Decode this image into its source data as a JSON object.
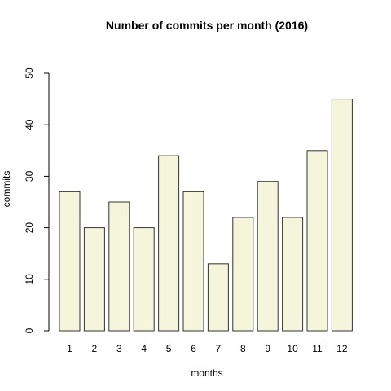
{
  "chart_data": {
    "type": "bar",
    "title": "Number of commits per month (2016)",
    "xlabel": "months",
    "ylabel": "commits",
    "categories": [
      "1",
      "2",
      "3",
      "4",
      "5",
      "6",
      "7",
      "8",
      "9",
      "10",
      "11",
      "12"
    ],
    "values": [
      27,
      20,
      25,
      20,
      34,
      27,
      13,
      22,
      29,
      22,
      35,
      45
    ],
    "ylim": [
      0,
      50
    ],
    "yticks": [
      "0",
      "10",
      "20",
      "30",
      "40",
      "50"
    ],
    "bar_color": "#f5f5dc",
    "grid": false,
    "legend": "none"
  }
}
